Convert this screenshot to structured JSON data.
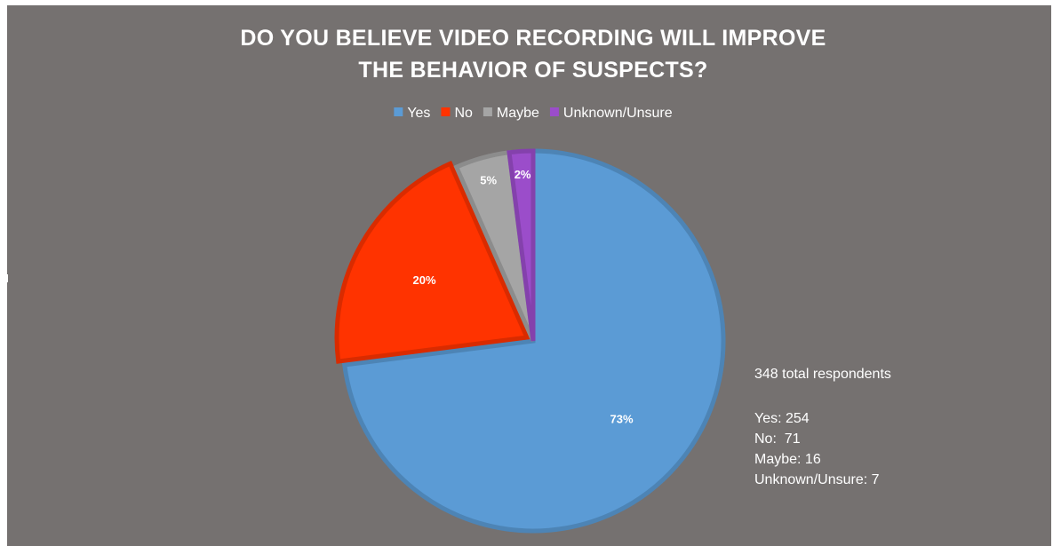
{
  "chart_data": {
    "type": "pie",
    "title": [
      "DO YOU BELIEVE VIDEO RECORDING WILL IMPROVE",
      "THE BEHAVIOR OF SUSPECTS?"
    ],
    "categories": [
      "Yes",
      "No",
      "Maybe",
      "Unknown/Unsure"
    ],
    "values": [
      254,
      71,
      16,
      7
    ],
    "percent_labels": [
      "73%",
      "20%",
      "5%",
      "2%"
    ],
    "colors": [
      "#5b9bd5",
      "#ff3300",
      "#a5a5a5",
      "#9b4dca"
    ],
    "exploded_category": "No",
    "legend_position": "top",
    "background": "#757170",
    "notes": [
      "348 total respondents",
      "",
      "Yes: 254",
      "No:  71",
      "Maybe: 16",
      "Unknown/Unsure: 7"
    ]
  }
}
